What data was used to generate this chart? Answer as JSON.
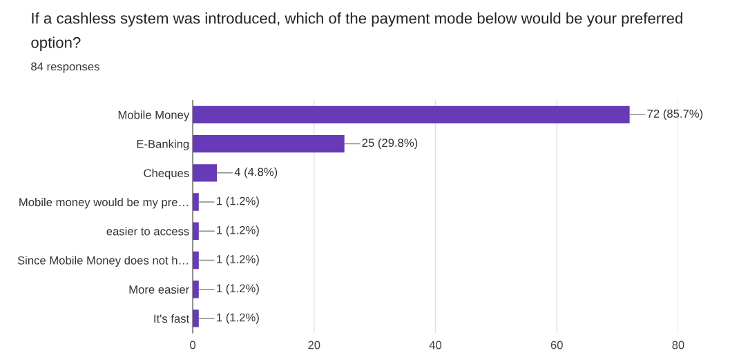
{
  "chart_data": {
    "type": "bar",
    "orientation": "horizontal",
    "title": "If a cashless system was introduced, which of the payment mode below would be your preferred option?",
    "subtitle": "84 responses",
    "categories": [
      "Mobile Money",
      "E-Banking",
      "Cheques",
      "Mobile money would be my pre…",
      "easier to access",
      "Since Mobile Money does not h…",
      "More easier",
      "It's fast"
    ],
    "values": [
      72,
      25,
      4,
      1,
      1,
      1,
      1,
      1
    ],
    "value_labels": [
      "72 (85.7%)",
      "25 (29.8%)",
      "4 (4.8%)",
      "1 (1.2%)",
      "1 (1.2%)",
      "1 (1.2%)",
      "1 (1.2%)",
      "1 (1.2%)"
    ],
    "color": "#673ab7",
    "xlim": [
      0,
      80
    ],
    "xticks": [
      0,
      20,
      40,
      60,
      80
    ],
    "grid": "x",
    "legend": false
  }
}
